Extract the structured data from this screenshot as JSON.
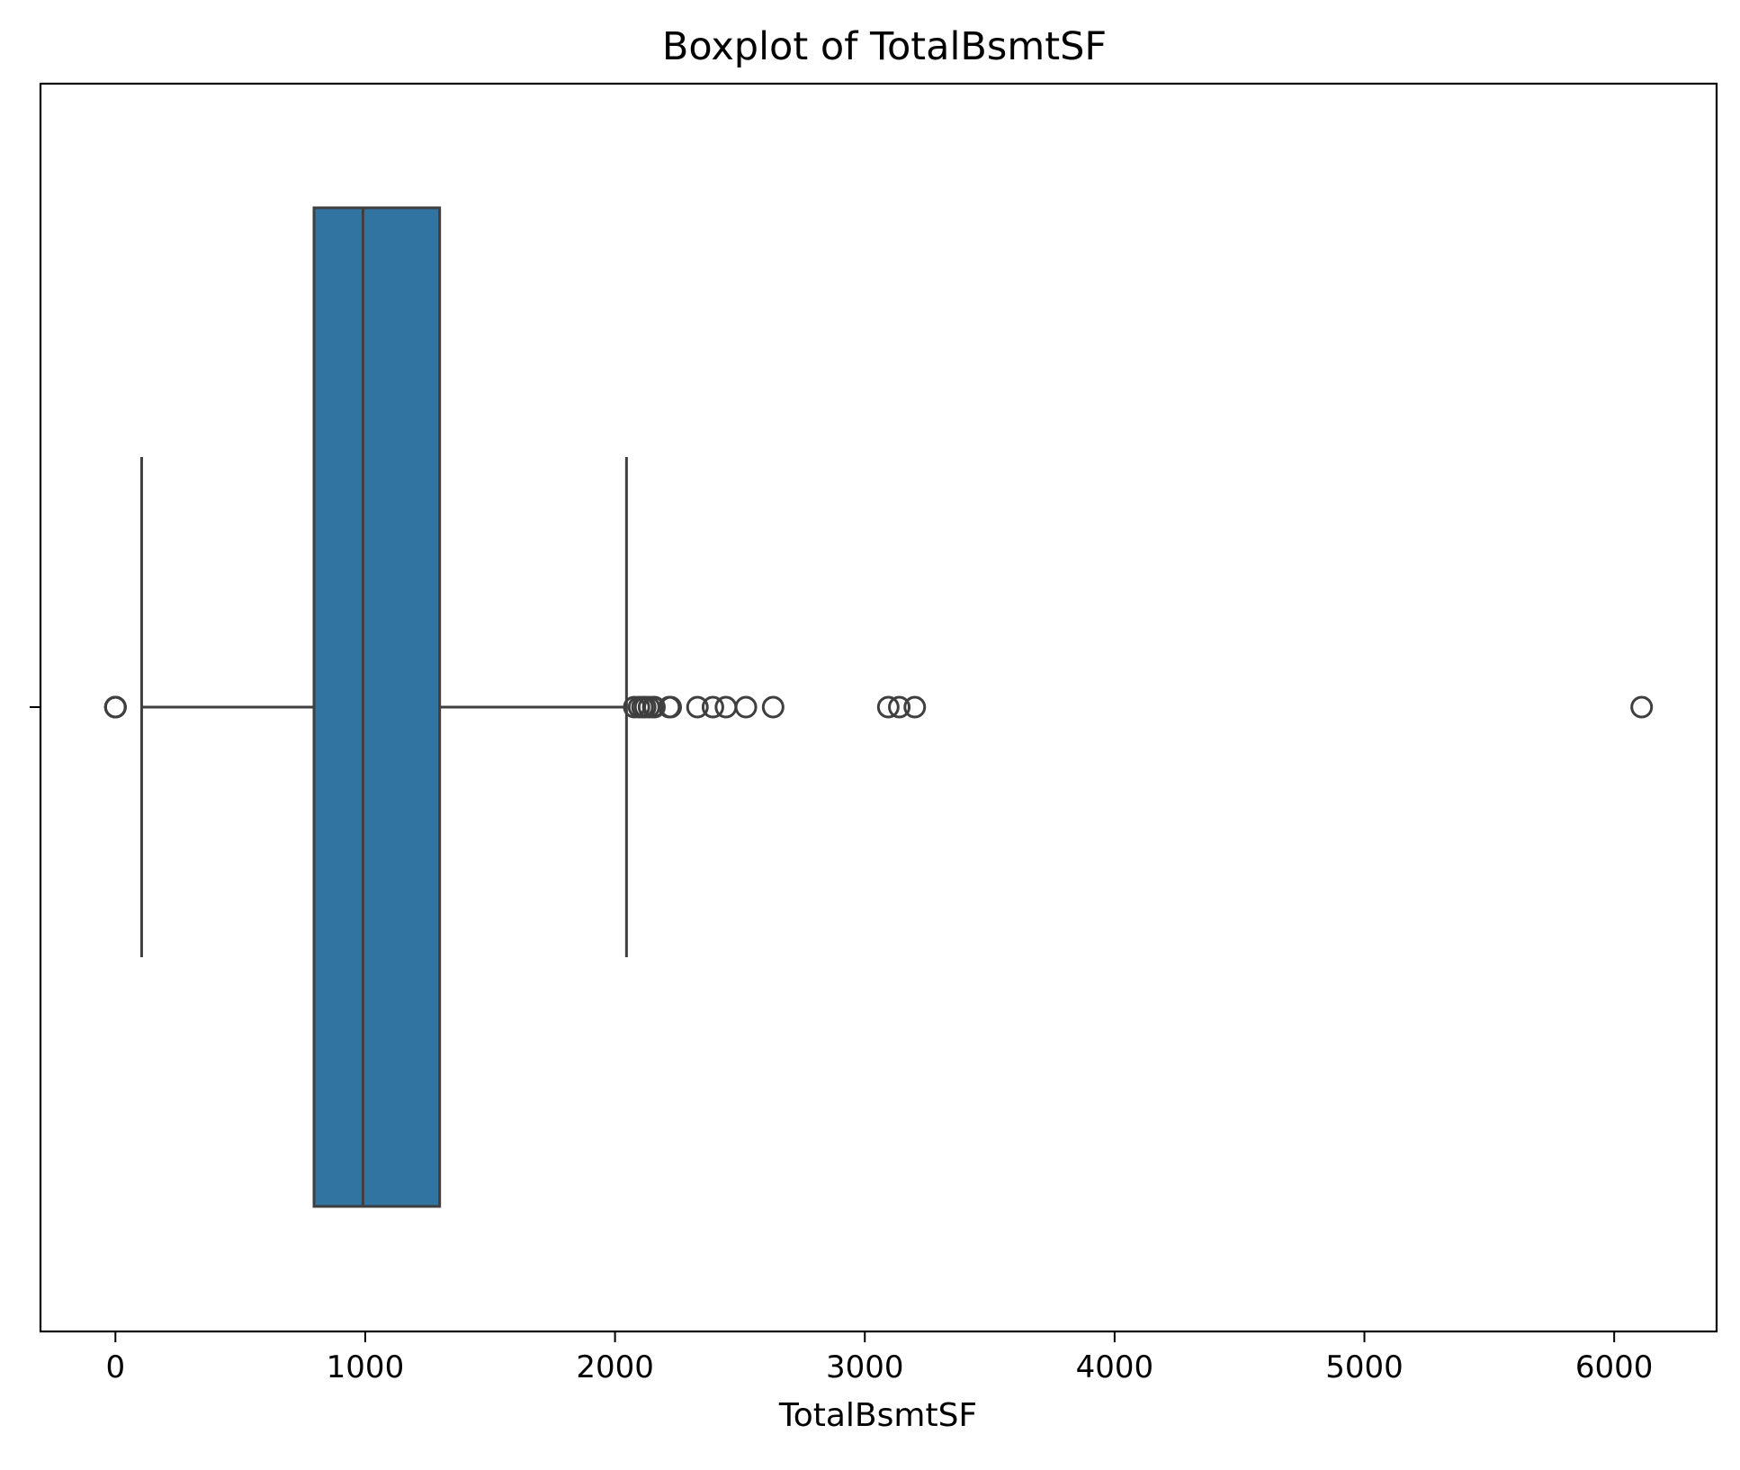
{
  "chart_data": {
    "type": "boxplot",
    "title": "Boxplot of TotalBsmtSF",
    "xlabel": "TotalBsmtSF",
    "ylabel": "",
    "xlim": [
      -300,
      6410
    ],
    "xticks": [
      0,
      1000,
      2000,
      3000,
      4000,
      5000,
      6000
    ],
    "orientation": "horizontal",
    "grid": false,
    "box": {
      "q1": 795,
      "median": 991,
      "q3": 1298,
      "whisker_low": 105,
      "whisker_high": 2046
    },
    "outliers": [
      0,
      0,
      0,
      0,
      2077,
      2096,
      2110,
      2121,
      2136,
      2153,
      2158,
      2217,
      2223,
      2330,
      2392,
      2444,
      2524,
      2633,
      3094,
      3138,
      3200,
      6110
    ],
    "colors": {
      "box_fill": "#3274a1",
      "line": "#3f3f3f",
      "frame": "#000000"
    }
  }
}
